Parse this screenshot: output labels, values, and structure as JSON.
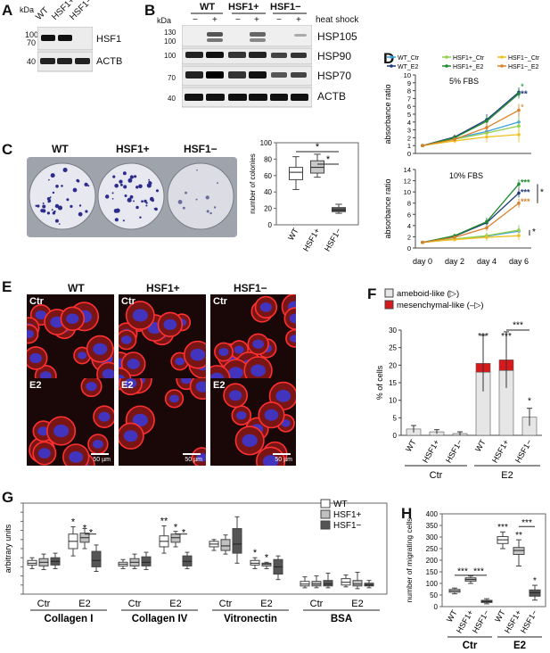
{
  "panels": {
    "A": "A",
    "B": "B",
    "C": "C",
    "D": "D",
    "E": "E",
    "F": "F",
    "G": "G",
    "H": "H"
  },
  "panelA": {
    "kda": "kDa",
    "lanes": [
      "WT",
      "HSF1+",
      "HSF1−"
    ],
    "markers": [
      "100",
      "70",
      "40"
    ],
    "bands": [
      "HSF1",
      "ACTB"
    ]
  },
  "panelB": {
    "kda": "kDa",
    "groups": [
      "WT",
      "HSF1+",
      "HSF1−"
    ],
    "treatment_signs": [
      "−",
      "+",
      "−",
      "+",
      "−",
      "+"
    ],
    "treatment_label": "heat shock",
    "markers": [
      "130",
      "100",
      "100",
      "70",
      "40"
    ],
    "bands": [
      "HSP105",
      "HSP90",
      "HSP70",
      "ACTB"
    ]
  },
  "panelC": {
    "plates": [
      "WT",
      "HSF1+",
      "HSF1−"
    ],
    "ylabel": "number of colonies",
    "yticks": [
      "0",
      "20",
      "40",
      "60",
      "80",
      "100"
    ],
    "sig": [
      "*",
      "*"
    ]
  },
  "panelE": {
    "columns": [
      "WT",
      "HSF1+",
      "HSF1−"
    ],
    "row_tags": [
      "Ctr",
      "Ctr",
      "Ctr",
      "E2",
      "E2",
      "E2"
    ],
    "scale": "50 µm"
  },
  "panelF": {
    "legend": [
      "ameboid-like (▷)",
      "mesenchymal-like (–▷)"
    ],
    "ylabel": "% of cells",
    "groups": [
      "Ctr",
      "E2"
    ],
    "sig": [
      "***",
      "***",
      "***",
      "*"
    ]
  },
  "panelG": {
    "ylabel": "arbitrary units",
    "legend": [
      "WT",
      "HSF1+",
      "HSF1−"
    ],
    "sub": [
      "Ctr",
      "E2",
      "Ctr",
      "E2",
      "Ctr",
      "E2",
      "Ctr",
      "E2"
    ],
    "groups": [
      "Collagen I",
      "Collagen IV",
      "Vitronectin",
      "BSA"
    ],
    "sig": [
      "*",
      "*",
      "*",
      "**",
      "*",
      "*",
      "*",
      "*"
    ]
  },
  "panelH": {
    "ylabel": "number of migrating cells",
    "groups": [
      "Ctr",
      "E2"
    ],
    "sig": [
      "***",
      "***",
      "***",
      "**",
      "*",
      "***"
    ]
  },
  "chart_data": [
    {
      "type": "box",
      "panel": "C",
      "categories": [
        "WT",
        "HSF1+",
        "HSF1−"
      ],
      "ylabel": "number of colonies",
      "ylim": [
        0,
        100
      ],
      "boxes": [
        {
          "min": 43,
          "q1": 55,
          "median": 64,
          "q3": 70,
          "max": 83
        },
        {
          "min": 58,
          "q1": 63,
          "median": 70,
          "q3": 78,
          "max": 86
        },
        {
          "min": 14,
          "q1": 16,
          "median": 18,
          "q3": 21,
          "max": 25
        }
      ],
      "colors": [
        "#ffffff",
        "#c8c8c8",
        "#555555"
      ]
    },
    {
      "type": "line",
      "panel": "D",
      "x": [
        "day 0",
        "day 2",
        "day 4",
        "day 6"
      ],
      "legend": [
        "WT_Ctr",
        "HSF1+_Ctr",
        "HSF1−_Ctr",
        "WT_E2",
        "HSF1+_E2",
        "HSF1−_E2"
      ],
      "colors": [
        "#3aa0e0",
        "#8fd14f",
        "#f0c020",
        "#1f3a7a",
        "#1e8c2e",
        "#d9822b"
      ],
      "subplots": [
        {
          "label": "5% FBS",
          "ylabel": "absorbance ratio",
          "ylim": [
            0,
            10
          ],
          "series": [
            {
              "name": "WT_Ctr",
              "values": [
                1,
                1.9,
                2.8,
                4.0
              ],
              "err": [
                0,
                0.3,
                0.8,
                1.2
              ]
            },
            {
              "name": "HSF1+_Ctr",
              "values": [
                1,
                1.8,
                2.6,
                3.5
              ],
              "err": [
                0,
                0.3,
                0.7,
                1.2
              ]
            },
            {
              "name": "HSF1−_Ctr",
              "values": [
                1,
                1.6,
                2.1,
                2.4
              ],
              "err": [
                0,
                0.3,
                0.7,
                1.0
              ]
            },
            {
              "name": "WT_E2",
              "values": [
                1,
                2.1,
                4.3,
                7.8
              ],
              "err": [
                0,
                0.3,
                0.7,
                0.6
              ]
            },
            {
              "name": "HSF1+_E2",
              "values": [
                1,
                2.0,
                4.1,
                7.6
              ],
              "err": [
                0,
                0.3,
                0.7,
                0.6
              ]
            },
            {
              "name": "HSF1−_E2",
              "values": [
                1,
                1.8,
                3.3,
                5.5
              ],
              "err": [
                0,
                0.3,
                0.6,
                0.8
              ]
            }
          ],
          "sig": [
            "*",
            "**",
            "*"
          ]
        },
        {
          "label": "10% FBS",
          "ylabel": "absorbance ratio",
          "ylim": [
            0,
            14
          ],
          "series": [
            {
              "name": "WT_Ctr",
              "values": [
                1,
                1.6,
                2.1,
                3.0
              ],
              "err": [
                0,
                0.3,
                0.6,
                0.9
              ]
            },
            {
              "name": "HSF1+_Ctr",
              "values": [
                1,
                1.6,
                2.2,
                3.2
              ],
              "err": [
                0,
                0.3,
                0.6,
                0.9
              ]
            },
            {
              "name": "HSF1−_Ctr",
              "values": [
                1,
                1.5,
                1.9,
                2.2
              ],
              "err": [
                0,
                0.3,
                0.6,
                0.8
              ]
            },
            {
              "name": "WT_E2",
              "values": [
                1,
                2.1,
                4.5,
                9.8
              ],
              "err": [
                0,
                0.3,
                0.7,
                0.8
              ]
            },
            {
              "name": "HSF1+_E2",
              "values": [
                1,
                2.2,
                4.7,
                11.4
              ],
              "err": [
                0,
                0.3,
                0.7,
                0.8
              ]
            },
            {
              "name": "HSF1−_E2",
              "values": [
                1,
                1.9,
                3.6,
                8.0
              ],
              "err": [
                0,
                0.3,
                0.6,
                0.8
              ]
            }
          ],
          "sig": [
            "***",
            "***",
            "***",
            "*",
            "*"
          ]
        }
      ]
    },
    {
      "type": "bar",
      "panel": "F",
      "categories": [
        "WT",
        "HSF1+",
        "HSF1−",
        "WT",
        "HSF1+",
        "HSF1−"
      ],
      "ylabel": "% of cells",
      "ylim": [
        0,
        30
      ],
      "series": [
        {
          "name": "ameboid-like (▷)",
          "values": [
            1.8,
            1.0,
            0.5,
            18.0,
            18.5,
            5.2
          ],
          "color": "#e6e6e6"
        },
        {
          "name": "mesenchymal-like (–▷)",
          "values": [
            0,
            0,
            0,
            2.5,
            3.0,
            0
          ],
          "color": "#d7191c"
        }
      ],
      "err": [
        1.0,
        0.6,
        0.5,
        8.0,
        8.0,
        2.5
      ]
    },
    {
      "type": "box",
      "panel": "G",
      "ylabel": "arbitrary units",
      "ylim": [
        0,
        1
      ],
      "series_names": [
        "WT",
        "HSF1+",
        "HSF1−"
      ],
      "colors": [
        "#ffffff",
        "#c0c0c0",
        "#555555"
      ],
      "groups": [
        {
          "name": "Collagen I",
          "sub": [
            [
              {
                "min": 0.28,
                "q1": 0.32,
                "median": 0.34,
                "q3": 0.37,
                "max": 0.4
              },
              {
                "min": 0.27,
                "q1": 0.31,
                "median": 0.35,
                "q3": 0.39,
                "max": 0.44
              },
              {
                "min": 0.28,
                "q1": 0.32,
                "median": 0.36,
                "q3": 0.4,
                "max": 0.45
              }
            ],
            [
              {
                "min": 0.42,
                "q1": 0.5,
                "median": 0.58,
                "q3": 0.66,
                "max": 0.74
              },
              {
                "min": 0.5,
                "q1": 0.57,
                "median": 0.62,
                "q3": 0.67,
                "max": 0.72
              },
              {
                "min": 0.25,
                "q1": 0.3,
                "median": 0.37,
                "q3": 0.47,
                "max": 0.54
              }
            ]
          ]
        },
        {
          "name": "Collagen IV",
          "sub": [
            [
              {
                "min": 0.28,
                "q1": 0.31,
                "median": 0.33,
                "q3": 0.35,
                "max": 0.38
              },
              {
                "min": 0.28,
                "q1": 0.31,
                "median": 0.35,
                "q3": 0.39,
                "max": 0.44
              },
              {
                "min": 0.27,
                "q1": 0.31,
                "median": 0.35,
                "q3": 0.41,
                "max": 0.46
              }
            ],
            [
              {
                "min": 0.45,
                "q1": 0.52,
                "median": 0.58,
                "q3": 0.64,
                "max": 0.75
              },
              {
                "min": 0.52,
                "q1": 0.57,
                "median": 0.62,
                "q3": 0.66,
                "max": 0.69
              },
              {
                "min": 0.28,
                "q1": 0.31,
                "median": 0.36,
                "q3": 0.42,
                "max": 0.46
              }
            ]
          ]
        },
        {
          "name": "Vitronectin",
          "sub": [
            [
              {
                "min": 0.48,
                "q1": 0.52,
                "median": 0.55,
                "q3": 0.58,
                "max": 0.6
              },
              {
                "min": 0.44,
                "q1": 0.48,
                "median": 0.53,
                "q3": 0.6,
                "max": 0.65
              },
              {
                "min": 0.34,
                "q1": 0.45,
                "median": 0.55,
                "q3": 0.72,
                "max": 0.85
              }
            ],
            [
              {
                "min": 0.28,
                "q1": 0.32,
                "median": 0.34,
                "q3": 0.37,
                "max": 0.4
              },
              {
                "min": 0.28,
                "q1": 0.31,
                "median": 0.33,
                "q3": 0.34,
                "max": 0.35
              },
              {
                "min": 0.16,
                "q1": 0.22,
                "median": 0.3,
                "q3": 0.38,
                "max": 0.42
              }
            ]
          ]
        },
        {
          "name": "BSA",
          "sub": [
            [
              {
                "min": 0.07,
                "q1": 0.09,
                "median": 0.11,
                "q3": 0.14,
                "max": 0.19
              },
              {
                "min": 0.07,
                "q1": 0.09,
                "median": 0.11,
                "q3": 0.14,
                "max": 0.2
              },
              {
                "min": 0.07,
                "q1": 0.09,
                "median": 0.11,
                "q3": 0.15,
                "max": 0.23
              }
            ],
            [
              {
                "min": 0.08,
                "q1": 0.1,
                "median": 0.13,
                "q3": 0.17,
                "max": 0.21
              },
              {
                "min": 0.06,
                "q1": 0.09,
                "median": 0.11,
                "q3": 0.15,
                "max": 0.24
              },
              {
                "min": 0.07,
                "q1": 0.09,
                "median": 0.1,
                "q3": 0.12,
                "max": 0.15
              }
            ]
          ]
        }
      ]
    },
    {
      "type": "box",
      "panel": "H",
      "categories": [
        "WT",
        "HSF1+",
        "HSF1−",
        "WT",
        "HSF1+",
        "HSF1−"
      ],
      "ylabel": "number of migrating cells",
      "ylim": [
        0,
        400
      ],
      "yticks": [
        0,
        50,
        100,
        150,
        200,
        250,
        300,
        350,
        400
      ],
      "colors": [
        "#ffffff",
        "#c8c8c8",
        "#555555",
        "#ffffff",
        "#c8c8c8",
        "#555555"
      ],
      "boxes": [
        {
          "min": 55,
          "q1": 62,
          "median": 68,
          "q3": 74,
          "max": 80
        },
        {
          "min": 100,
          "q1": 110,
          "median": 117,
          "q3": 124,
          "max": 132
        },
        {
          "min": 12,
          "q1": 18,
          "median": 22,
          "q3": 27,
          "max": 34
        },
        {
          "min": 250,
          "q1": 272,
          "median": 288,
          "q3": 302,
          "max": 322
        },
        {
          "min": 175,
          "q1": 225,
          "median": 242,
          "q3": 255,
          "max": 288
        },
        {
          "min": 28,
          "q1": 45,
          "median": 60,
          "q3": 72,
          "max": 92
        }
      ]
    }
  ]
}
